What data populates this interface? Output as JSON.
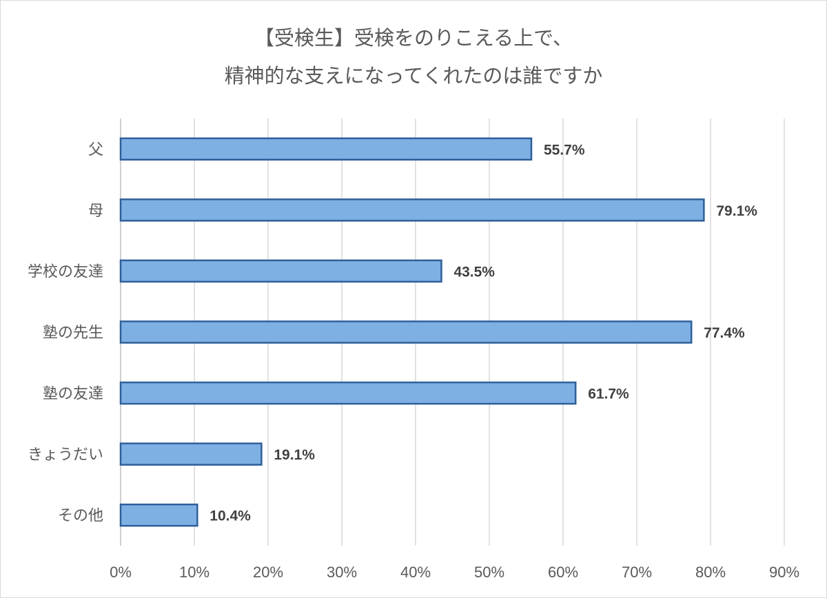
{
  "chart_data": {
    "type": "bar",
    "orientation": "horizontal",
    "title": [
      "【受検生】受検をのりこえる上で、",
      "精神的な支えになってくれたのは誰ですか"
    ],
    "categories": [
      "父",
      "母",
      "学校の友達",
      "塾の先生",
      "塾の友達",
      "きょうだい",
      "その他"
    ],
    "values": [
      55.7,
      79.1,
      43.5,
      77.4,
      61.7,
      19.1,
      10.4
    ],
    "data_labels": [
      "55.7%",
      "79.1%",
      "43.5%",
      "77.4%",
      "61.7%",
      "19.1%",
      "10.4%"
    ],
    "xlim": [
      0,
      90
    ],
    "x_ticks": [
      0,
      10,
      20,
      30,
      40,
      50,
      60,
      70,
      80,
      90
    ],
    "x_tick_labels": [
      "0%",
      "10%",
      "20%",
      "30%",
      "40%",
      "50%",
      "60%",
      "70%",
      "80%",
      "90%"
    ],
    "grid": "vertical",
    "legend": "none",
    "colors": {
      "bar_fill": "#7fb0e3",
      "bar_stroke": "#2e5f9a",
      "grid": "#d9d9d9"
    }
  }
}
